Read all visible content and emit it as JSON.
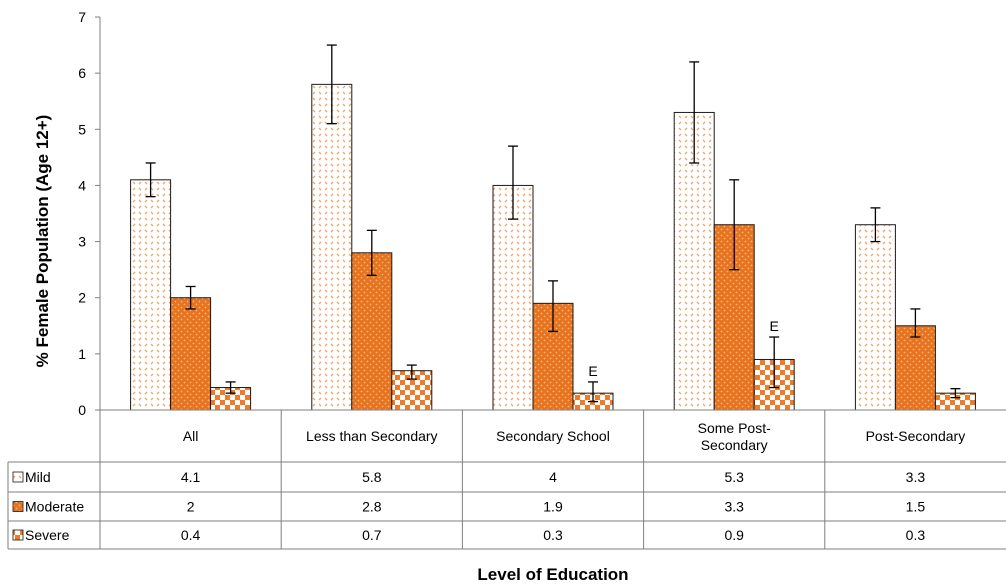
{
  "chart_data": {
    "type": "bar",
    "title": "",
    "ylabel": "% Female Population (Age 12+)",
    "xlabel": "Level of Education",
    "ylim": [
      0,
      7
    ],
    "yticks": [
      "0",
      "1",
      "2",
      "3",
      "4",
      "5",
      "6",
      "7"
    ],
    "grid": false,
    "legend": "data table below plot",
    "categories": [
      "All",
      "Less than Secondary",
      "Secondary School",
      "Some Post-Secondary",
      "Post-Secondary"
    ],
    "series": [
      {
        "name": "Mild",
        "values": [
          4.1,
          5.8,
          4,
          5.3,
          3.3
        ],
        "value_labels": [
          "4.1",
          "5.8",
          "4",
          "5.3",
          "3.3"
        ],
        "error_low": [
          3.8,
          5.1,
          3.4,
          4.4,
          3.0
        ],
        "error_high": [
          4.4,
          6.5,
          4.7,
          6.2,
          3.6
        ],
        "flags": [
          "",
          "",
          "",
          "",
          ""
        ],
        "color": "#F07A28"
      },
      {
        "name": "Moderate",
        "values": [
          2,
          2.8,
          1.9,
          3.3,
          1.5
        ],
        "value_labels": [
          "2",
          "2.8",
          "1.9",
          "3.3",
          "1.5"
        ],
        "error_low": [
          1.8,
          2.4,
          1.4,
          2.5,
          1.3
        ],
        "error_high": [
          2.2,
          3.2,
          2.3,
          4.1,
          1.8
        ],
        "flags": [
          "",
          "",
          "",
          "",
          ""
        ],
        "color": "#E8731F"
      },
      {
        "name": "Severe",
        "values": [
          0.4,
          0.7,
          0.3,
          0.9,
          0.3
        ],
        "value_labels": [
          "0.4",
          "0.7",
          "0.3",
          "0.9",
          "0.3"
        ],
        "error_low": [
          0.3,
          0.55,
          0.15,
          0.4,
          0.22
        ],
        "error_high": [
          0.5,
          0.8,
          0.5,
          1.3,
          0.38
        ],
        "flags": [
          "",
          "",
          "E",
          "E",
          ""
        ],
        "color": "#F07A28"
      }
    ]
  }
}
